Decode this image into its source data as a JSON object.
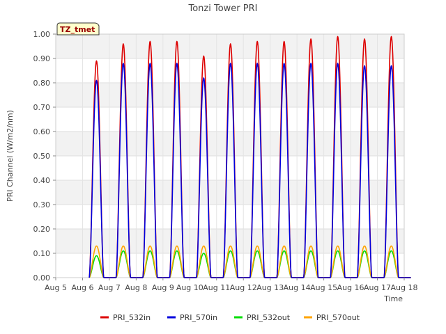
{
  "chart_data": {
    "type": "line",
    "title": "Tonzi Tower PRI",
    "xlabel": "Time",
    "ylabel": "PRI Channel (W/m2/nm)",
    "badge": "TZ_tmet",
    "ylim": [
      0,
      1.0
    ],
    "xlim": [
      "Aug 5",
      "Aug 18"
    ],
    "x_ticks": [
      "Aug 5",
      "Aug 6",
      "Aug 7",
      "Aug 8",
      "Aug 9",
      "Aug 10",
      "Aug 11",
      "Aug 12",
      "Aug 13",
      "Aug 14",
      "Aug 15",
      "Aug 16",
      "Aug 17",
      "Aug 18"
    ],
    "y_ticks": [
      "0.00",
      "0.10",
      "0.20",
      "0.30",
      "0.40",
      "0.50",
      "0.60",
      "0.70",
      "0.80",
      "0.90",
      "1.00"
    ],
    "grid": true,
    "legend_position": "bottom",
    "colors": {
      "PRI_532in": "#dd0000",
      "PRI_570in": "#0000dd",
      "PRI_532out": "#00dd00",
      "PRI_570out": "#ffa500"
    },
    "series": [
      {
        "name": "PRI_532in",
        "daily_peaks": [
          {
            "date": "Aug 6",
            "peak": 0.89
          },
          {
            "date": "Aug 7",
            "peak": 0.96
          },
          {
            "date": "Aug 8",
            "peak": 0.97
          },
          {
            "date": "Aug 9",
            "peak": 0.97
          },
          {
            "date": "Aug 10",
            "peak": 0.91
          },
          {
            "date": "Aug 11",
            "peak": 0.96
          },
          {
            "date": "Aug 12",
            "peak": 0.97
          },
          {
            "date": "Aug 13",
            "peak": 0.97
          },
          {
            "date": "Aug 14",
            "peak": 0.98
          },
          {
            "date": "Aug 15",
            "peak": 0.99
          },
          {
            "date": "Aug 16",
            "peak": 0.98
          },
          {
            "date": "Aug 17",
            "peak": 0.99
          }
        ]
      },
      {
        "name": "PRI_570in",
        "daily_peaks": [
          {
            "date": "Aug 6",
            "peak": 0.81
          },
          {
            "date": "Aug 7",
            "peak": 0.88
          },
          {
            "date": "Aug 8",
            "peak": 0.88
          },
          {
            "date": "Aug 9",
            "peak": 0.88
          },
          {
            "date": "Aug 10",
            "peak": 0.82
          },
          {
            "date": "Aug 11",
            "peak": 0.88
          },
          {
            "date": "Aug 12",
            "peak": 0.88
          },
          {
            "date": "Aug 13",
            "peak": 0.88
          },
          {
            "date": "Aug 14",
            "peak": 0.88
          },
          {
            "date": "Aug 15",
            "peak": 0.88
          },
          {
            "date": "Aug 16",
            "peak": 0.87
          },
          {
            "date": "Aug 17",
            "peak": 0.87
          }
        ]
      },
      {
        "name": "PRI_532out",
        "daily_peaks": [
          {
            "date": "Aug 6",
            "peak": 0.09
          },
          {
            "date": "Aug 7",
            "peak": 0.11
          },
          {
            "date": "Aug 8",
            "peak": 0.11
          },
          {
            "date": "Aug 9",
            "peak": 0.11
          },
          {
            "date": "Aug 10",
            "peak": 0.1
          },
          {
            "date": "Aug 11",
            "peak": 0.11
          },
          {
            "date": "Aug 12",
            "peak": 0.11
          },
          {
            "date": "Aug 13",
            "peak": 0.11
          },
          {
            "date": "Aug 14",
            "peak": 0.11
          },
          {
            "date": "Aug 15",
            "peak": 0.11
          },
          {
            "date": "Aug 16",
            "peak": 0.11
          },
          {
            "date": "Aug 17",
            "peak": 0.11
          }
        ]
      },
      {
        "name": "PRI_570out",
        "daily_peaks": [
          {
            "date": "Aug 6",
            "peak": 0.13
          },
          {
            "date": "Aug 7",
            "peak": 0.13
          },
          {
            "date": "Aug 8",
            "peak": 0.13
          },
          {
            "date": "Aug 9",
            "peak": 0.13
          },
          {
            "date": "Aug 10",
            "peak": 0.13
          },
          {
            "date": "Aug 11",
            "peak": 0.13
          },
          {
            "date": "Aug 12",
            "peak": 0.13
          },
          {
            "date": "Aug 13",
            "peak": 0.13
          },
          {
            "date": "Aug 14",
            "peak": 0.13
          },
          {
            "date": "Aug 15",
            "peak": 0.13
          },
          {
            "date": "Aug 16",
            "peak": 0.13
          },
          {
            "date": "Aug 17",
            "peak": 0.13
          }
        ]
      }
    ]
  }
}
